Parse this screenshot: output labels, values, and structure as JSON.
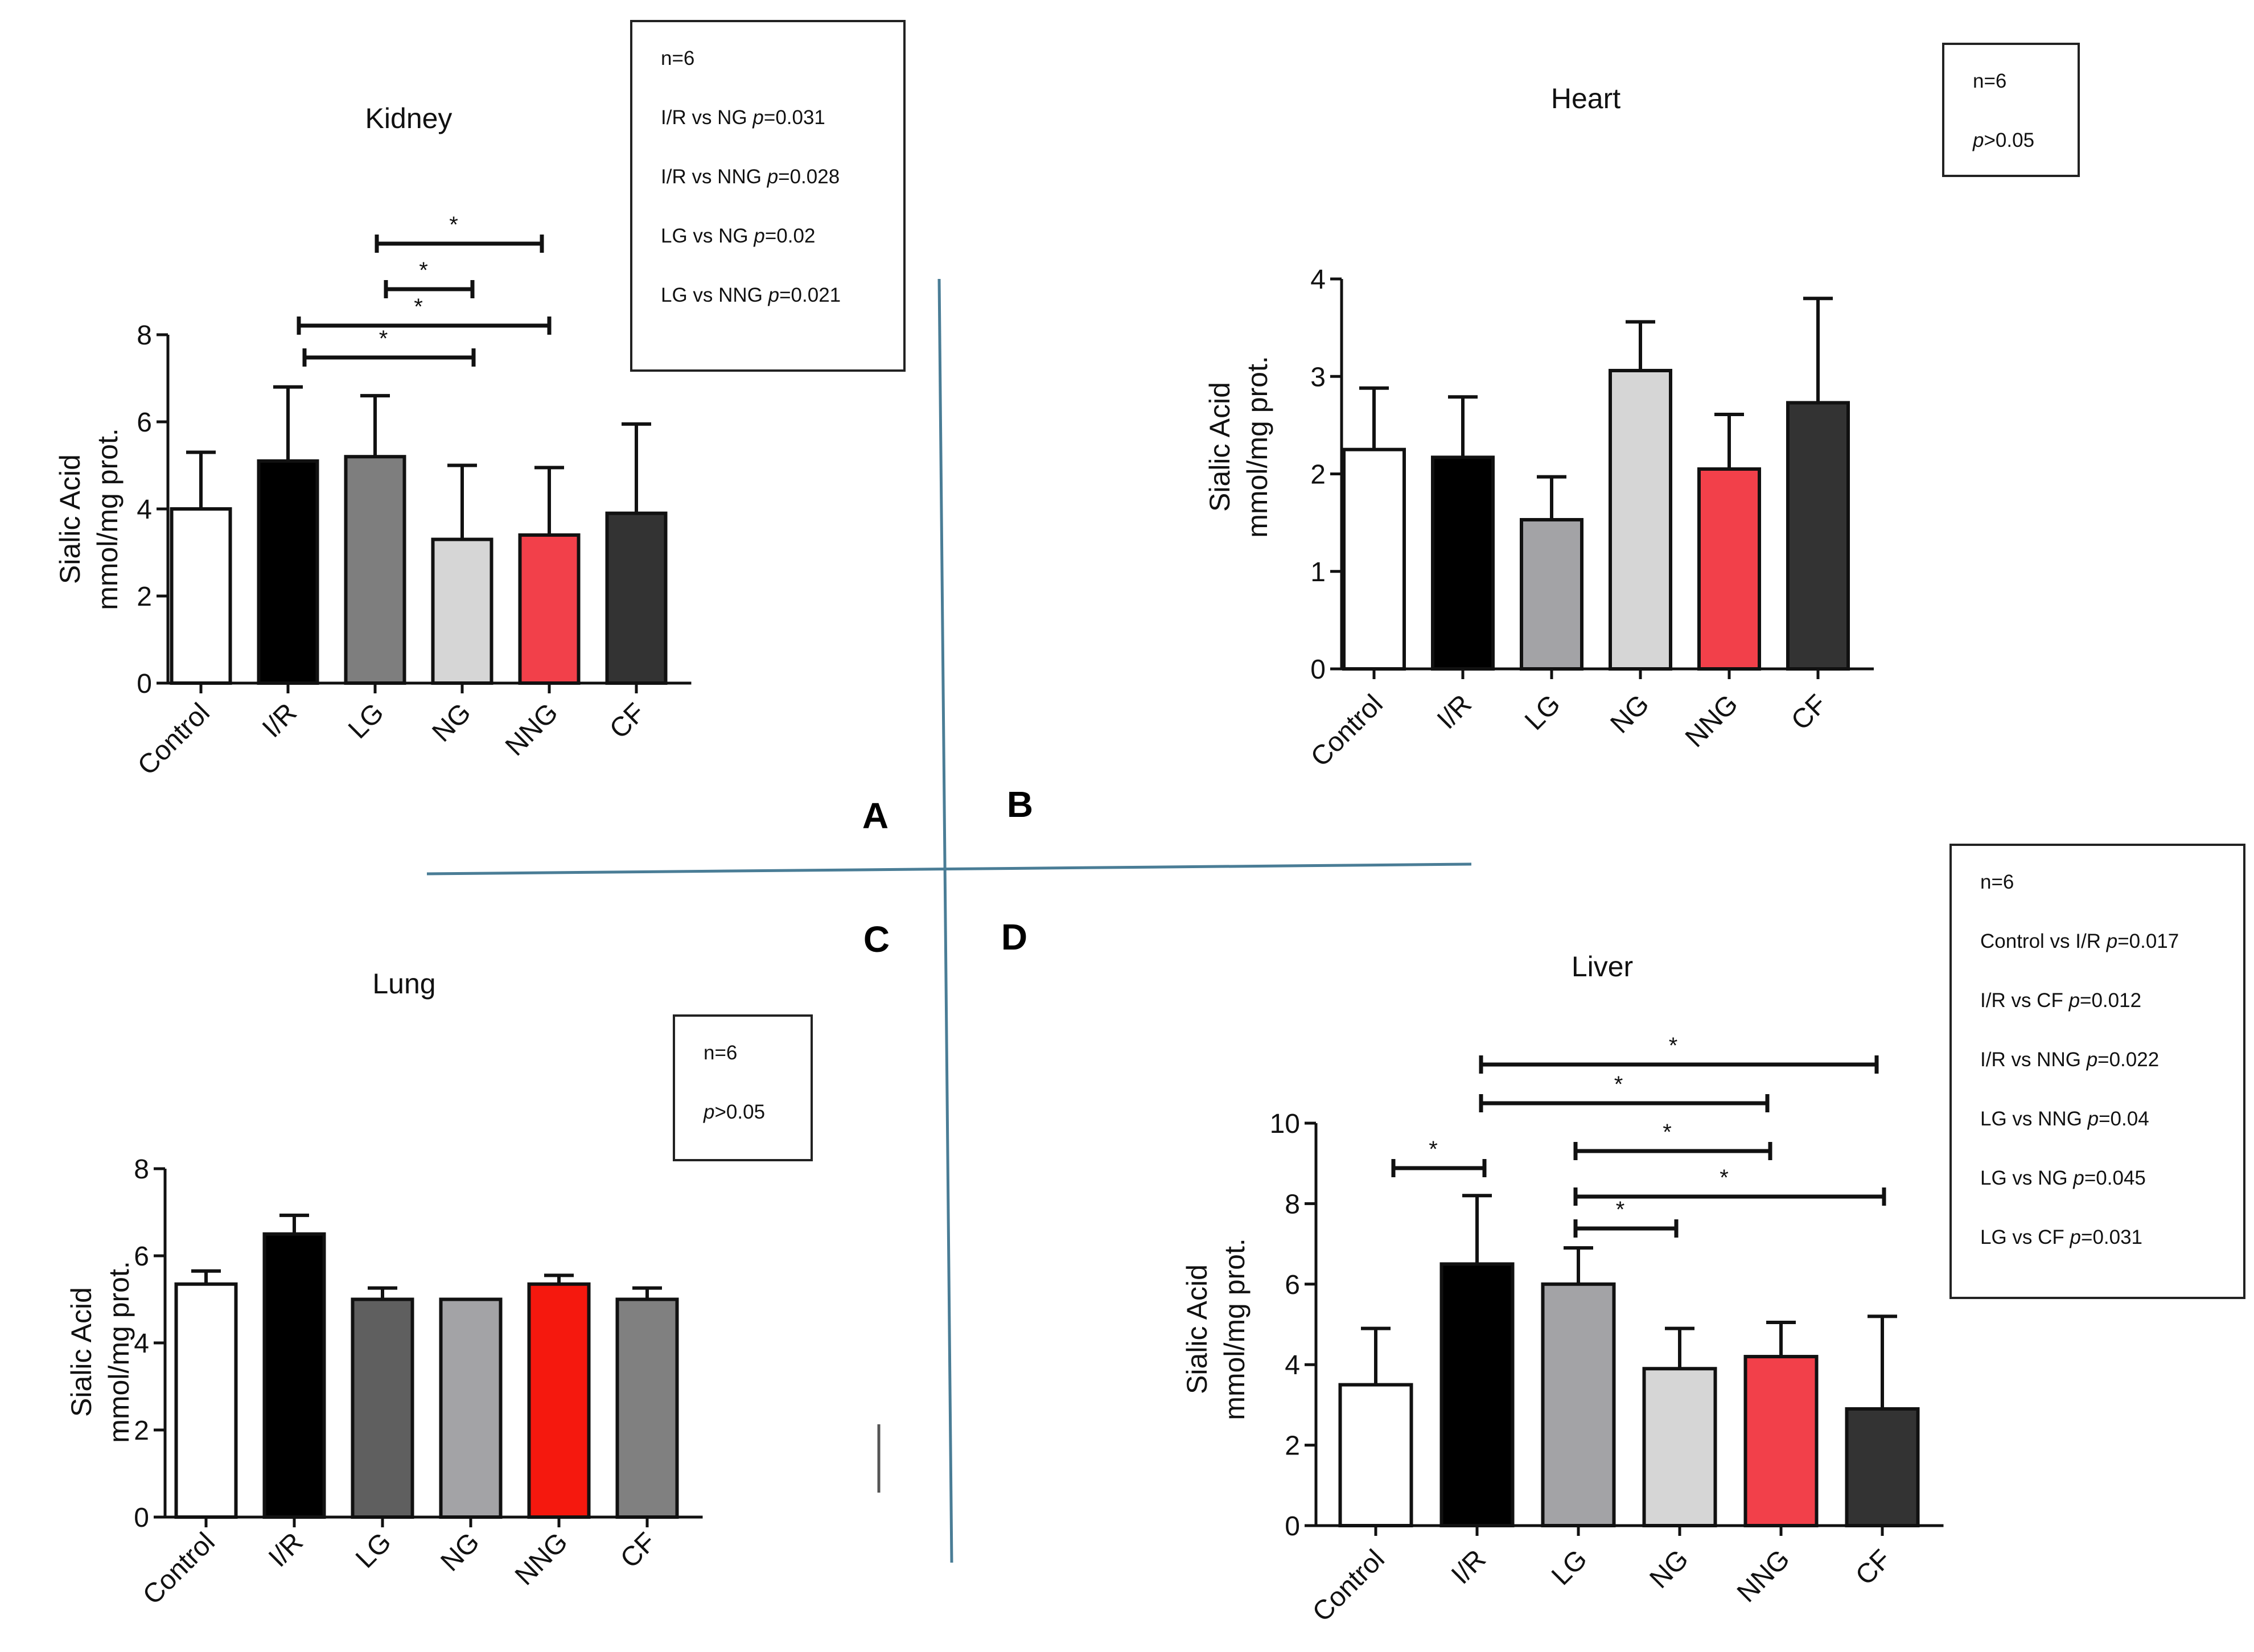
{
  "colors": {
    "axis": "#111111",
    "divider": "#4a7d96"
  },
  "panel_letters": [
    "A",
    "B",
    "C",
    "D"
  ],
  "chart_data": [
    {
      "id": "kidney",
      "type": "bar",
      "title": "Kidney",
      "ylabel": [
        "Sialic Acid",
        "mmol/mg prot."
      ],
      "ylim": [
        0,
        8
      ],
      "yticks": [
        0,
        2,
        4,
        6,
        8
      ],
      "categories": [
        "Control",
        "I/R",
        "LG",
        "NG",
        "NNG",
        "CF"
      ],
      "values": [
        4.0,
        5.1,
        5.2,
        3.3,
        3.4,
        3.9
      ],
      "errors": [
        1.3,
        1.7,
        1.4,
        1.7,
        1.55,
        2.05
      ],
      "bar_colors": [
        "#ffffff",
        "#000000",
        "#7e7e7e",
        "#d6d6d6",
        "#f2404a",
        "#333333"
      ],
      "significance": [
        {
          "from": 2,
          "to": 4,
          "label": "*"
        },
        {
          "from": 2,
          "to": 3,
          "label": "*"
        },
        {
          "from": 1,
          "to": 4,
          "label": "*"
        },
        {
          "from": 1,
          "to": 3,
          "label": "*"
        }
      ],
      "stats": {
        "n": "n=6",
        "lines": [
          {
            "pre": "I/R vs NG ",
            "p": "p",
            "post": "=0.031"
          },
          {
            "pre": "I/R vs NNG ",
            "p": "p",
            "post": "=0.028"
          },
          {
            "pre": "LG vs NG ",
            "p": "p",
            "post": "=0.02"
          },
          {
            "pre": "LG vs NNG ",
            "p": "p",
            "post": "=0.021"
          }
        ]
      }
    },
    {
      "id": "heart",
      "type": "bar",
      "title": "Heart",
      "ylabel": [
        "Sialic Acid",
        "mmol/mg prot."
      ],
      "ylim": [
        0,
        4
      ],
      "yticks": [
        0,
        1,
        2,
        3,
        4
      ],
      "categories": [
        "Control",
        "I/R",
        "LG",
        "NG",
        "NNG",
        "CF"
      ],
      "values": [
        2.25,
        2.17,
        1.53,
        3.06,
        2.05,
        2.73
      ],
      "errors": [
        0.63,
        0.62,
        0.44,
        0.5,
        0.56,
        1.07
      ],
      "bar_colors": [
        "#ffffff",
        "#000000",
        "#a3a3a6",
        "#d6d6d6",
        "#f2404a",
        "#333333"
      ],
      "significance": [],
      "stats": {
        "n": "n=6",
        "lines": [
          {
            "pre": "",
            "p": "p",
            "post": ">0.05"
          }
        ]
      }
    },
    {
      "id": "lung",
      "type": "bar",
      "title": "Lung",
      "ylabel": [
        "Sialic Acid",
        "mmol/mg prot."
      ],
      "ylim": [
        0,
        8
      ],
      "yticks": [
        0,
        2,
        4,
        6,
        8
      ],
      "categories": [
        "Control",
        "I/R",
        "LG",
        "NG",
        "NNG",
        "CF"
      ],
      "values": [
        5.35,
        6.5,
        5.0,
        5.0,
        5.35,
        5.0
      ],
      "errors": [
        0.3,
        0.43,
        0.26,
        0.0,
        0.2,
        0.26
      ],
      "bar_colors": [
        "#ffffff",
        "#000000",
        "#5f5f5f",
        "#a3a3a6",
        "#f5180e",
        "#808080"
      ],
      "significance": [],
      "stats": {
        "n": "n=6",
        "lines": [
          {
            "pre": "",
            "p": "p",
            "post": ">0.05"
          }
        ]
      }
    },
    {
      "id": "liver",
      "type": "bar",
      "title": "Liver",
      "ylabel": [
        "Sialic Acid",
        "mmol/mg prot."
      ],
      "ylim": [
        0,
        10
      ],
      "yticks": [
        0,
        2,
        4,
        6,
        8,
        10
      ],
      "categories": [
        "Control",
        "I/R",
        "LG",
        "NG",
        "NNG",
        "CF"
      ],
      "values": [
        3.5,
        6.5,
        6.0,
        3.9,
        4.2,
        2.9
      ],
      "errors": [
        1.4,
        1.7,
        0.9,
        1.0,
        0.85,
        2.3
      ],
      "bar_colors": [
        "#ffffff",
        "#000000",
        "#a3a3a6",
        "#d6d6d6",
        "#f2404a",
        "#333333"
      ],
      "significance": [
        {
          "from": 1,
          "to": 5,
          "label": "*"
        },
        {
          "from": 1,
          "to": 4,
          "label": "*"
        },
        {
          "from": 0,
          "to": 1,
          "label": "*"
        },
        {
          "from": 2,
          "to": 4,
          "label": "*"
        },
        {
          "from": 2,
          "to": 5,
          "label": "*"
        },
        {
          "from": 2,
          "to": 3,
          "label": "*"
        }
      ],
      "stats": {
        "n": "n=6",
        "lines": [
          {
            "pre": "Control vs I/R ",
            "p": "p",
            "post": "=0.017"
          },
          {
            "pre": "I/R vs CF ",
            "p": "p",
            "post": "=0.012"
          },
          {
            "pre": "I/R vs NNG ",
            "p": "p",
            "post": "=0.022"
          },
          {
            "pre": "LG vs NNG ",
            "p": "p",
            "post": "=0.04"
          },
          {
            "pre": "LG vs NG ",
            "p": "p",
            "post": "=0.045"
          },
          {
            "pre": "LG vs CF ",
            "p": "p",
            "post": "=0.031"
          }
        ]
      }
    }
  ]
}
